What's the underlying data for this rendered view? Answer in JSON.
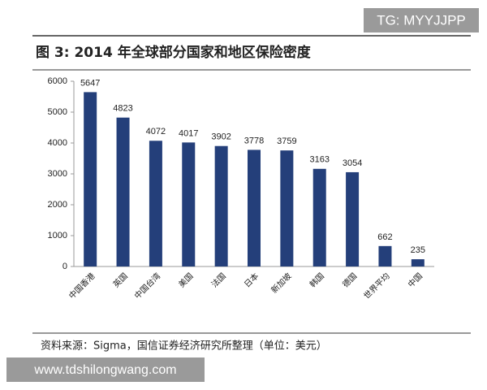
{
  "chart_data": {
    "type": "bar",
    "title": "图 3:  2014 年全球部分国家和地区保险密度",
    "categories": [
      "中国香港",
      "英国",
      "中国台湾",
      "美国",
      "法国",
      "日本",
      "新加坡",
      "韩国",
      "德国",
      "世界平均",
      "中国"
    ],
    "values": [
      5647,
      4823,
      4072,
      4017,
      3902,
      3778,
      3759,
      3163,
      3054,
      662,
      235
    ],
    "color": "#243f7a",
    "ylim": [
      0,
      6000
    ],
    "yticks": [
      0,
      1000,
      2000,
      3000,
      4000,
      5000,
      6000
    ],
    "grid": false
  },
  "source": "资料来源：Sigma，国信证券经济研究所整理（单位：美元）",
  "watermarks": [
    "TG: MYYJJPP",
    "www.tdshilongwang.com"
  ]
}
